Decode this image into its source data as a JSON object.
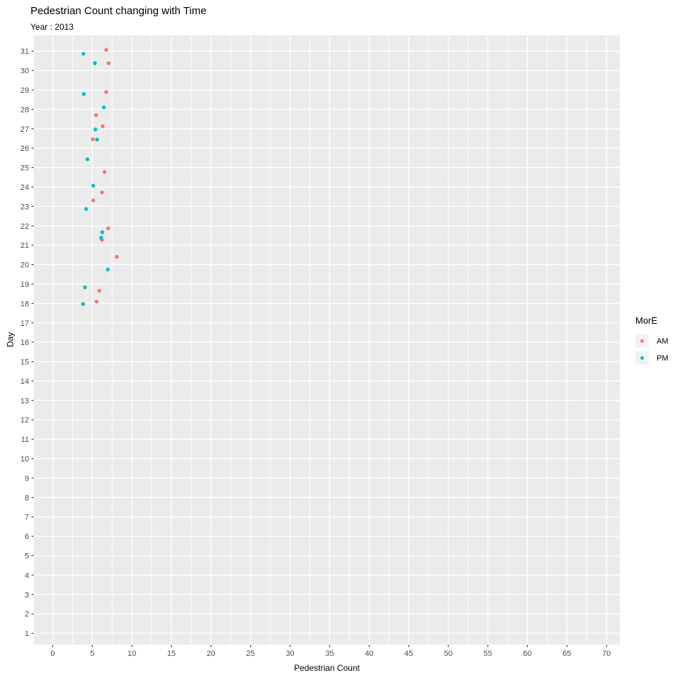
{
  "title": "Pedestrian Count changing with Time",
  "subtitle": "Year : 2013",
  "chart_data": {
    "type": "scatter",
    "title": "Pedestrian Count changing with Time",
    "subtitle": "Year : 2013",
    "xlabel": "Pedestrian Count",
    "ylabel": "Day",
    "xlim": [
      -2.37,
      71.68
    ],
    "ylim": [
      0.42,
      31.81
    ],
    "x_major_ticks": [
      0,
      5,
      10,
      15,
      20,
      25,
      30,
      35,
      40,
      45,
      50,
      55,
      60,
      65,
      70
    ],
    "x_minor_step": 2.5,
    "y_major_ticks": [
      1,
      2,
      3,
      4,
      5,
      6,
      7,
      8,
      9,
      10,
      11,
      12,
      13,
      14,
      15,
      16,
      17,
      18,
      19,
      20,
      21,
      22,
      23,
      24,
      25,
      26,
      27,
      28,
      29,
      30,
      31
    ],
    "grid": "on",
    "panel_bg": "#EBEBEB",
    "grid_color": "#FFFFFF",
    "tick_color": "#333333",
    "tick_label_color": "#4D4D4D",
    "legend": {
      "title": "MorE",
      "position": "right",
      "key_bg": "#F2F2F2",
      "entries": [
        {
          "label": "AM",
          "color": "#F8766D"
        },
        {
          "label": "PM",
          "color": "#00BFC4"
        }
      ]
    },
    "series": [
      {
        "name": "AM",
        "color": "#F8766D",
        "points": [
          [
            6.76,
            31.06
          ],
          [
            7.05,
            30.38
          ],
          [
            6.76,
            28.89
          ],
          [
            5.48,
            27.7
          ],
          [
            6.31,
            27.13
          ],
          [
            5.06,
            26.46
          ],
          [
            6.55,
            24.77
          ],
          [
            6.22,
            23.72
          ],
          [
            5.12,
            23.31
          ],
          [
            7.0,
            21.87
          ],
          [
            6.22,
            21.27
          ],
          [
            8.1,
            20.4
          ],
          [
            5.89,
            18.65
          ],
          [
            5.55,
            18.09
          ]
        ]
      },
      {
        "name": "PM",
        "color": "#00BFC4",
        "points": [
          [
            3.87,
            30.86
          ],
          [
            5.33,
            30.38
          ],
          [
            3.92,
            28.79
          ],
          [
            6.46,
            28.1
          ],
          [
            5.39,
            26.96
          ],
          [
            5.6,
            26.44
          ],
          [
            4.37,
            25.43
          ],
          [
            5.12,
            24.07
          ],
          [
            4.23,
            22.87
          ],
          [
            6.25,
            21.67
          ],
          [
            6.11,
            21.38
          ],
          [
            6.96,
            19.75
          ],
          [
            4.07,
            18.83
          ],
          [
            3.83,
            17.97
          ]
        ]
      }
    ]
  }
}
